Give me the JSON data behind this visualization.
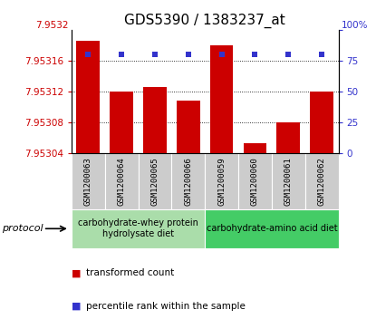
{
  "title": "GDS5390 / 1383237_at",
  "samples": [
    "GSM1200063",
    "GSM1200064",
    "GSM1200065",
    "GSM1200066",
    "GSM1200059",
    "GSM1200060",
    "GSM1200061",
    "GSM1200062"
  ],
  "red_values": [
    7.953185,
    7.95312,
    7.953125,
    7.953108,
    7.95318,
    7.953053,
    7.95308,
    7.95312
  ],
  "blue_values": [
    80,
    80,
    80,
    80,
    80,
    80,
    80,
    80
  ],
  "base": 7.95304,
  "ylim_left": [
    7.95304,
    7.9532
  ],
  "ylim_right": [
    0,
    100
  ],
  "yticks_left": [
    7.95304,
    7.95308,
    7.95312,
    7.95316
  ],
  "ytick_labels_left": [
    "7.95304",
    "7.95308",
    "7.95312",
    "7.95316"
  ],
  "ytick_top_label": "7.9532",
  "yticks_right": [
    0,
    25,
    50,
    75,
    100
  ],
  "ytick_labels_right": [
    "0",
    "25",
    "50",
    "75",
    "100%"
  ],
  "red_color": "#cc0000",
  "blue_color": "#3333cc",
  "bar_width": 0.7,
  "sample_box_color": "#cccccc",
  "protocol_groups": [
    {
      "label": "carbohydrate-whey protein\nhydrolysate diet",
      "start": 0,
      "end": 4,
      "color": "#aaddaa"
    },
    {
      "label": "carbohydrate-amino acid diet",
      "start": 4,
      "end": 8,
      "color": "#44cc66"
    }
  ],
  "protocol_label": "protocol",
  "legend_items": [
    {
      "color": "#cc0000",
      "label": "transformed count"
    },
    {
      "color": "#3333cc",
      "label": "percentile rank within the sample"
    }
  ],
  "title_fontsize": 11,
  "tick_fontsize": 7.5,
  "sample_fontsize": 6.5,
  "proto_fontsize": 7,
  "legend_fontsize": 7.5
}
